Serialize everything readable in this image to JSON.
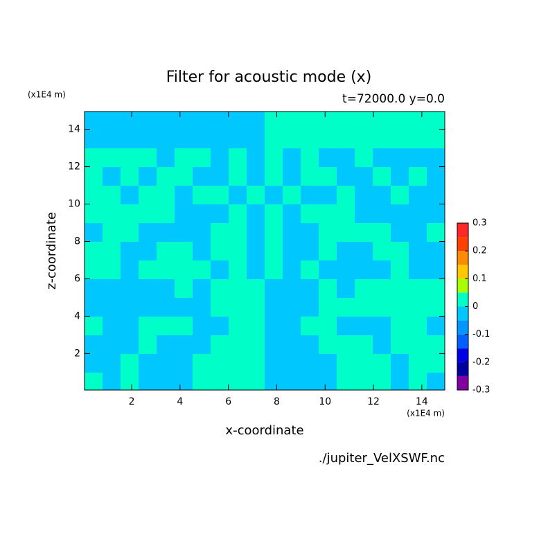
{
  "chart_data": {
    "type": "contour",
    "title": "Filter for acoustic mode (x)",
    "subtitle": "t=72000.0 y=0.0",
    "x_label": "x-coordinate",
    "y_label": "z-coordinate",
    "x_unit": "(x1E4 m)",
    "y_unit": "(x1E4 m)",
    "file": "./jupiter_VelXSWF.nc",
    "xlim": [
      0.05,
      14.95
    ],
    "ylim": [
      0.05,
      14.95
    ],
    "xticks": [
      2,
      4,
      6,
      8,
      10,
      12,
      14
    ],
    "yticks": [
      2,
      4,
      6,
      8,
      10,
      12,
      14
    ],
    "x": [
      0.42,
      1.17,
      1.91,
      2.66,
      3.4,
      4.15,
      4.89,
      5.64,
      6.38,
      7.13,
      7.87,
      8.62,
      9.36,
      10.11,
      10.85,
      11.6,
      12.34,
      13.09,
      13.83,
      14.58
    ],
    "y": [
      0.5,
      1.5,
      2.5,
      3.5,
      4.5,
      5.5,
      6.5,
      7.5,
      8.5,
      9.5,
      10.5,
      11.5,
      12.5,
      13.5,
      14.5
    ],
    "values": [
      [
        0.02,
        -0.02,
        0.02,
        -0.02,
        -0.02,
        -0.02,
        0.02,
        0.02,
        0.02,
        0.02,
        -0.02,
        -0.02,
        -0.02,
        -0.02,
        0.02,
        0.02,
        0.02,
        -0.02,
        0.02,
        -0.02
      ],
      [
        -0.02,
        -0.02,
        0.02,
        -0.02,
        -0.02,
        -0.02,
        0.02,
        0.02,
        0.02,
        0.02,
        -0.02,
        -0.02,
        -0.02,
        -0.02,
        0.02,
        0.02,
        0.02,
        -0.02,
        0.02,
        0.02
      ],
      [
        -0.02,
        -0.02,
        -0.02,
        0.02,
        -0.02,
        -0.02,
        -0.02,
        0.02,
        0.02,
        0.02,
        -0.02,
        -0.02,
        -0.02,
        0.02,
        0.02,
        0.02,
        -0.02,
        0.02,
        0.02,
        0.02
      ],
      [
        0.02,
        -0.02,
        -0.02,
        0.02,
        0.02,
        0.02,
        -0.02,
        -0.02,
        0.02,
        0.02,
        -0.02,
        -0.02,
        0.02,
        0.02,
        -0.02,
        -0.02,
        -0.02,
        0.02,
        0.02,
        -0.02
      ],
      [
        -0.02,
        -0.02,
        -0.02,
        -0.02,
        -0.02,
        -0.02,
        -0.02,
        0.02,
        0.02,
        0.02,
        -0.02,
        -0.02,
        -0.02,
        0.02,
        0.02,
        0.02,
        0.02,
        0.02,
        0.02,
        0.02
      ],
      [
        -0.02,
        -0.02,
        -0.02,
        -0.02,
        -0.02,
        0.02,
        -0.02,
        0.02,
        0.02,
        0.02,
        -0.02,
        -0.02,
        -0.02,
        0.02,
        -0.02,
        0.02,
        0.02,
        0.02,
        0.02,
        0.02
      ],
      [
        0.02,
        0.02,
        -0.02,
        0.02,
        0.02,
        0.02,
        0.02,
        -0.02,
        0.02,
        -0.02,
        0.02,
        -0.02,
        0.02,
        -0.02,
        -0.02,
        -0.02,
        -0.02,
        0.02,
        -0.02,
        -0.02
      ],
      [
        0.02,
        0.02,
        -0.02,
        -0.02,
        0.02,
        0.02,
        -0.02,
        0.02,
        0.02,
        -0.02,
        0.02,
        -0.02,
        -0.02,
        0.02,
        -0.02,
        -0.02,
        0.02,
        0.02,
        -0.02,
        -0.02
      ],
      [
        -0.02,
        0.02,
        0.02,
        -0.02,
        -0.02,
        -0.02,
        -0.02,
        0.02,
        0.02,
        -0.02,
        0.02,
        -0.02,
        -0.02,
        0.02,
        0.02,
        0.02,
        0.02,
        -0.02,
        -0.02,
        0.02
      ],
      [
        0.02,
        0.02,
        0.02,
        0.02,
        0.02,
        -0.02,
        -0.02,
        -0.02,
        0.02,
        -0.02,
        0.02,
        -0.02,
        0.02,
        0.02,
        0.02,
        -0.02,
        -0.02,
        -0.02,
        -0.02,
        -0.02
      ],
      [
        0.02,
        0.02,
        -0.02,
        0.02,
        0.02,
        -0.02,
        0.02,
        0.02,
        -0.02,
        0.02,
        -0.02,
        0.02,
        -0.02,
        -0.02,
        0.02,
        -0.02,
        -0.02,
        0.02,
        -0.02,
        -0.02
      ],
      [
        0.02,
        -0.02,
        0.02,
        -0.02,
        0.02,
        0.02,
        -0.02,
        -0.02,
        0.02,
        -0.02,
        0.02,
        -0.02,
        0.02,
        0.02,
        -0.02,
        -0.02,
        0.02,
        -0.02,
        0.02,
        -0.02
      ],
      [
        0.02,
        0.02,
        0.02,
        0.02,
        -0.02,
        0.02,
        0.02,
        -0.02,
        0.02,
        -0.02,
        0.02,
        -0.02,
        0.02,
        -0.02,
        -0.02,
        0.02,
        -0.02,
        -0.02,
        -0.02,
        -0.02
      ],
      [
        -0.02,
        -0.02,
        -0.02,
        -0.02,
        -0.02,
        -0.02,
        -0.02,
        -0.02,
        -0.02,
        -0.02,
        0.02,
        0.02,
        0.02,
        0.02,
        0.02,
        0.02,
        0.02,
        0.02,
        0.02,
        0.02
      ],
      [
        -0.02,
        -0.02,
        -0.02,
        -0.02,
        -0.02,
        -0.02,
        -0.02,
        -0.02,
        -0.02,
        -0.02,
        0.02,
        0.02,
        0.02,
        0.02,
        0.02,
        0.02,
        0.02,
        0.02,
        0.02,
        0.02
      ]
    ],
    "levels": [
      -0.3,
      -0.25,
      -0.2,
      -0.15,
      -0.1,
      -0.05,
      0,
      0.05,
      0.1,
      0.15,
      0.2,
      0.25,
      0.3
    ],
    "colors": [
      "#8000a0",
      "#0000a0",
      "#0000e8",
      "#0060ff",
      "#0098ff",
      "#00c8ff",
      "#00ffc8",
      "#a8ff00",
      "#ffc800",
      "#ff8c00",
      "#ff4000",
      "#ff2828",
      "#ffa8a8"
    ],
    "cbticks": [
      -0.3,
      -0.2,
      -0.1,
      0,
      0.1,
      0.2,
      0.3
    ]
  }
}
